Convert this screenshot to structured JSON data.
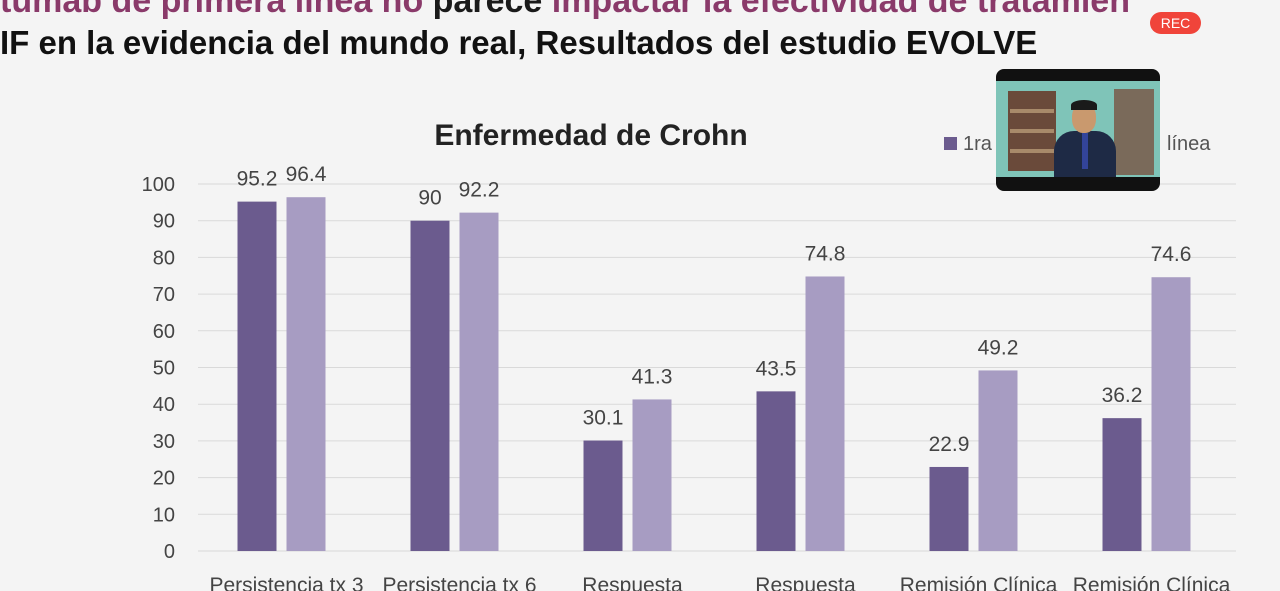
{
  "slide": {
    "title_line1_pre": "tumab de primera línea no ",
    "title_line1_dark": "parece",
    "title_line1_post": " impactar la efectividad de tratamien",
    "title_line2": "IF en la evidencia del mundo real, Resultados del estudio EVOLVE"
  },
  "recording": {
    "label": "REC"
  },
  "video": {
    "icon": "webcam-participant-video"
  },
  "colors": {
    "series1": "#6b5b8e",
    "series2": "#a79cc2",
    "grid": "#d9d9d9"
  },
  "chart_data": {
    "type": "bar",
    "title": "Enfermedad de Crohn",
    "categories": [
      "Persistencia tx 3",
      "Persistencia tx 6",
      "Respuesta",
      "Respuesta",
      "Remisión Clínica",
      "Remisión Clínica"
    ],
    "series": [
      {
        "name": "1ra",
        "values": [
          95.2,
          90,
          30.1,
          43.5,
          22.9,
          36.2
        ]
      },
      {
        "name": "línea",
        "values": [
          96.4,
          92.2,
          41.3,
          74.8,
          49.2,
          74.6
        ]
      }
    ],
    "value_labels": [
      [
        "95.2",
        "90",
        "30.1",
        "43.5",
        "22.9",
        "36.2"
      ],
      [
        "96.4",
        "92.2",
        "41.3",
        "74.8",
        "49.2",
        "74.6"
      ]
    ],
    "yticks": [
      "0",
      "10",
      "20",
      "30",
      "40",
      "50",
      "60",
      "70",
      "80",
      "90",
      "100"
    ],
    "ylim": [
      0,
      100
    ],
    "grid": true,
    "legend": "top-right"
  }
}
